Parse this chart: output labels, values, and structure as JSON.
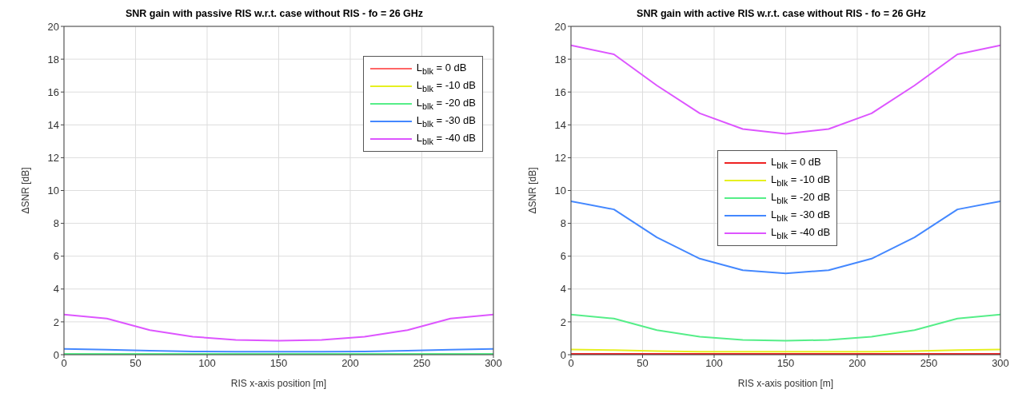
{
  "chart_data": [
    {
      "type": "line",
      "title": "SNR gain with passive RIS w.r.t. case without RIS  - fo = 26 GHz",
      "xlabel": "RIS x-axis position [m]",
      "ylabel": "ΔSNR [dB]",
      "x": [
        0,
        30,
        60,
        90,
        120,
        150,
        180,
        210,
        240,
        270,
        300
      ],
      "xlim": [
        0,
        300
      ],
      "xticks": [
        0,
        50,
        100,
        150,
        200,
        250,
        300
      ],
      "ylim": [
        0,
        20
      ],
      "yticks": [
        0,
        2,
        4,
        6,
        8,
        10,
        12,
        14,
        16,
        18,
        20
      ],
      "grid": true,
      "legend": "top right",
      "series": [
        {
          "name": "L$_{blk}$ = 0 dB",
          "color": "#ff6666",
          "values": [
            null,
            null,
            null,
            null,
            null,
            null,
            null,
            null,
            null,
            null,
            null
          ]
        },
        {
          "name": "L$_{blk}$ = -10 dB",
          "color": "#e6f020",
          "values": [
            null,
            null,
            null,
            null,
            null,
            null,
            null,
            null,
            null,
            null,
            null
          ]
        },
        {
          "name": "L$_{blk}$ = -20 dB",
          "color": "#55ee88",
          "values": [
            0.05,
            0.05,
            0.05,
            0.05,
            0.05,
            0.05,
            0.05,
            0.05,
            0.05,
            0.05,
            0.05
          ]
        },
        {
          "name": "L$_{blk}$ = -30 dB",
          "color": "#4488ff",
          "values": [
            0.35,
            0.3,
            0.24,
            0.2,
            0.18,
            0.18,
            0.18,
            0.2,
            0.24,
            0.3,
            0.35
          ]
        },
        {
          "name": "L$_{blk}$ = -40 dB",
          "color": "#dd55ff",
          "values": [
            2.45,
            2.2,
            1.5,
            1.1,
            0.9,
            0.85,
            0.9,
            1.1,
            1.5,
            2.2,
            2.45
          ]
        }
      ]
    },
    {
      "type": "line",
      "title": "SNR gain with active RIS w.r.t. case without RIS  - fo = 26 GHz",
      "xlabel": "RIS x-axis position [m]",
      "ylabel": "ΔSNR [dB]",
      "x": [
        0,
        30,
        60,
        90,
        120,
        150,
        180,
        210,
        240,
        270,
        300
      ],
      "xlim": [
        0,
        300
      ],
      "xticks": [
        0,
        50,
        100,
        150,
        200,
        250,
        300
      ],
      "ylim": [
        0,
        20
      ],
      "yticks": [
        0,
        2,
        4,
        6,
        8,
        10,
        12,
        14,
        16,
        18,
        20
      ],
      "grid": true,
      "legend": "center",
      "series": [
        {
          "name": "L$_{blk}$ = 0 dB",
          "color": "#ee2222",
          "values": [
            0.05,
            0.05,
            0.05,
            0.05,
            0.05,
            0.05,
            0.05,
            0.05,
            0.05,
            0.05,
            0.05
          ]
        },
        {
          "name": "L$_{blk}$ = -10 dB",
          "color": "#e6f020",
          "values": [
            0.32,
            0.28,
            0.22,
            0.18,
            0.18,
            0.18,
            0.18,
            0.18,
            0.22,
            0.28,
            0.32
          ]
        },
        {
          "name": "L$_{blk}$ = -20 dB",
          "color": "#55ee88",
          "values": [
            2.45,
            2.2,
            1.5,
            1.1,
            0.9,
            0.85,
            0.9,
            1.1,
            1.5,
            2.2,
            2.45
          ]
        },
        {
          "name": "L$_{blk}$ = -30 dB",
          "color": "#4488ff",
          "values": [
            9.35,
            8.85,
            7.15,
            5.85,
            5.15,
            4.95,
            5.15,
            5.85,
            7.15,
            8.85,
            9.35
          ]
        },
        {
          "name": "L$_{blk}$ = -40 dB",
          "color": "#dd55ff",
          "values": [
            18.85,
            18.3,
            16.4,
            14.7,
            13.75,
            13.45,
            13.75,
            14.7,
            16.4,
            18.3,
            18.85
          ]
        }
      ]
    }
  ]
}
